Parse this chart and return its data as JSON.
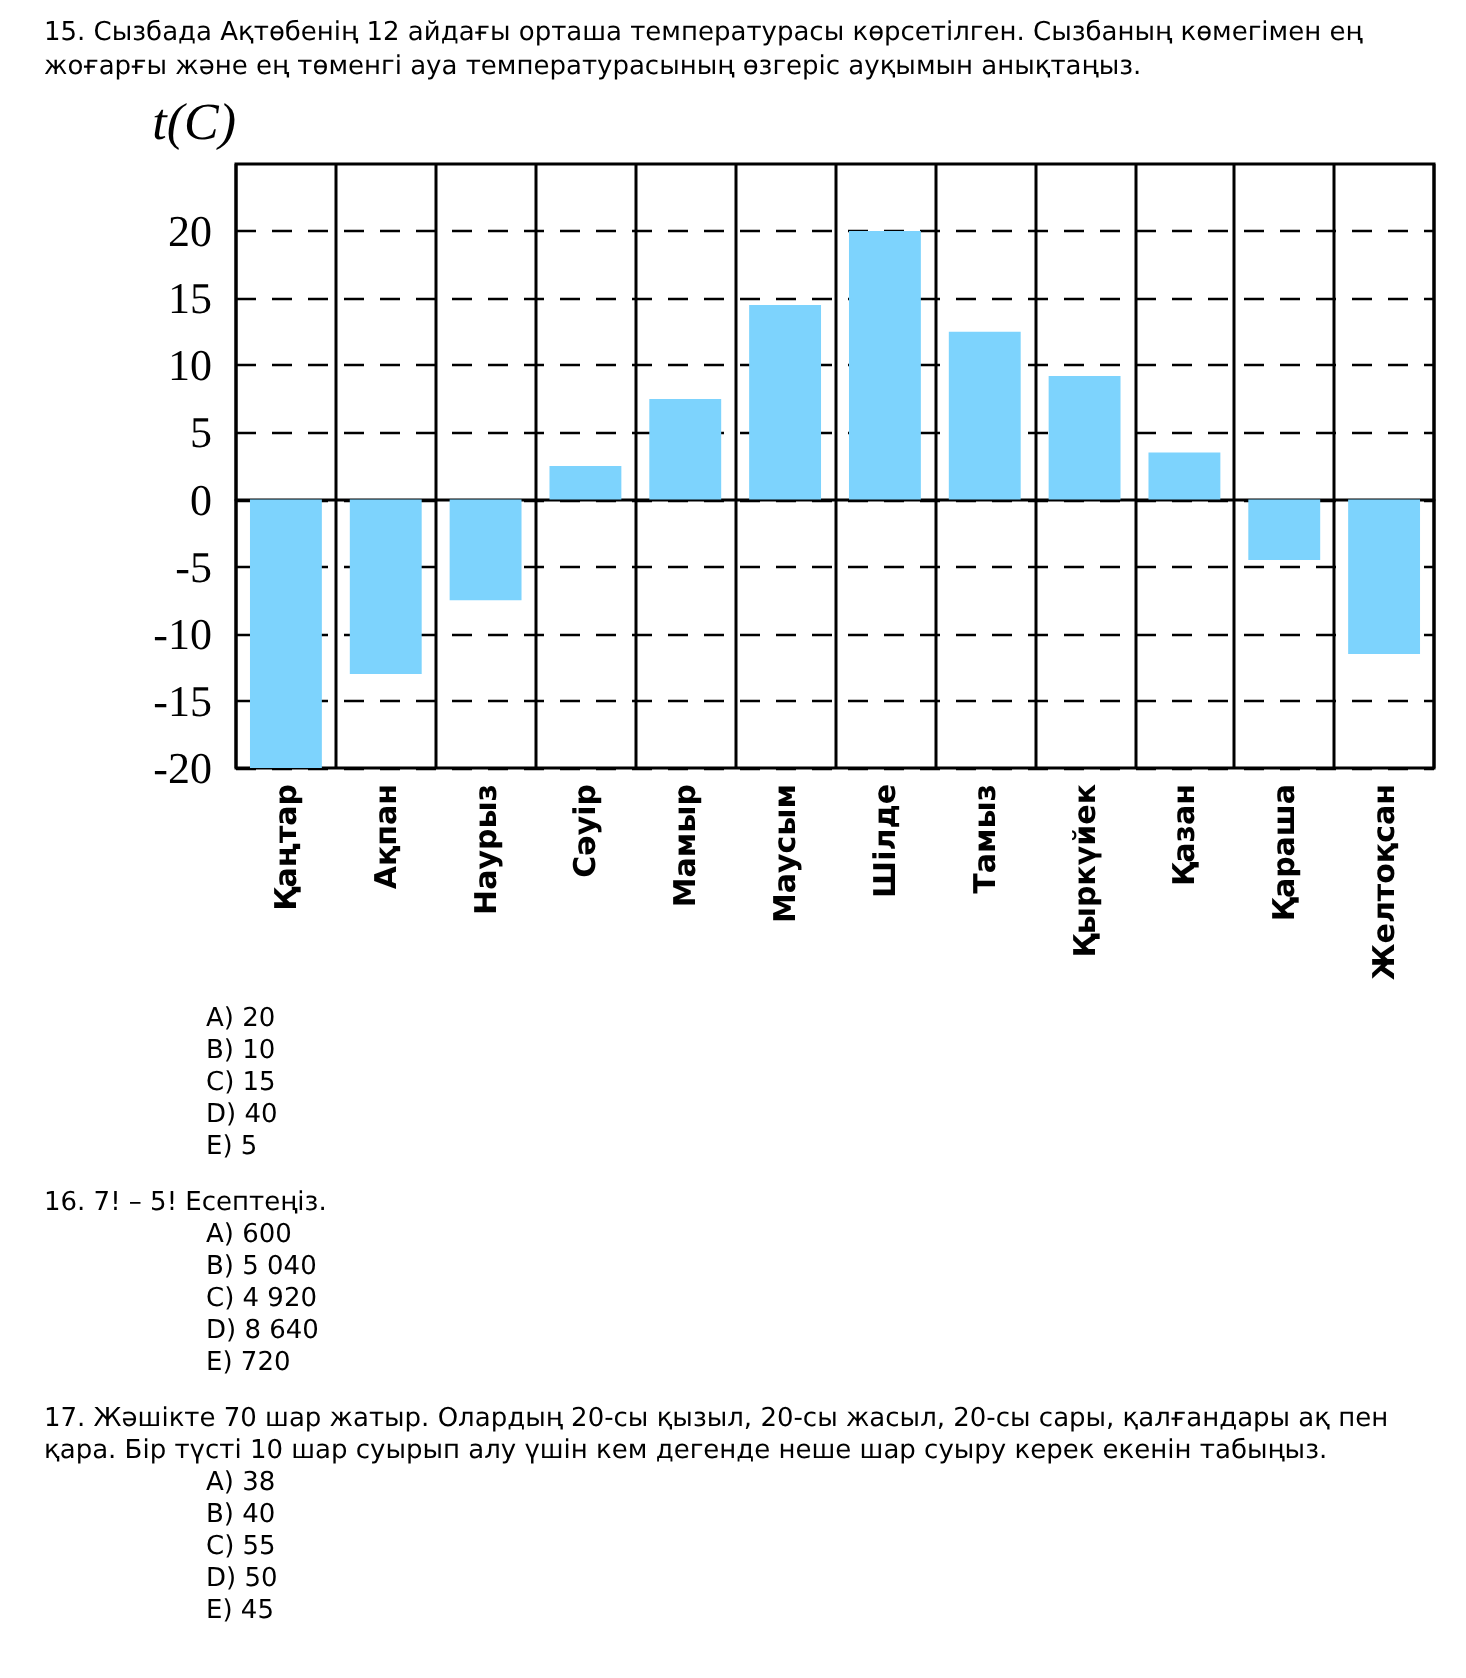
{
  "chart_data": {
    "type": "bar",
    "title": "15. Сызбада Ақтөбенің 12 айдағы орташа температурасы көрсетілген. Сызбаның көмегімен ең жоғарғы және ең төменгі ауа температурасының өзгеріс ауқымын анықтаңыз.",
    "ylabel": "t(C)",
    "categories": [
      "Қаңтар",
      "Ақпан",
      "Наурыз",
      "Сәуір",
      "Мамыр",
      "Маусым",
      "Шілде",
      "Тамыз",
      "Қыркүйек",
      "Қазан",
      "Қараша",
      "Желтоқсан"
    ],
    "values": [
      -20,
      -13,
      -7.5,
      2.5,
      7.5,
      14.5,
      20,
      12.5,
      9.2,
      3.5,
      -4.5,
      -11.5
    ],
    "color": "#7dd3fd",
    "ylim": [
      -20,
      25
    ],
    "yticks": [
      -20,
      -15,
      -10,
      -5,
      0,
      5,
      10,
      15,
      20
    ],
    "grid": true,
    "annotations": [
      "A) 20",
      "B) 10",
      "C) 15",
      "D) 40",
      "E) 5",
      "16. 7! – 5! Есептеңіз.",
      "A) 600",
      "B) 5 040",
      "C) 4 920",
      "D) 8 640",
      "E) 720",
      "17. Жәшікте 70 шар жатыр. Олардың 20-сы қызыл, 20-сы жасыл, 20-сы сары, қалғандары ақ пен қара. Бір түсті 10 шар суырып алу үшін кем дегенде неше шар суыру керек екенін табыңыз.",
      "A) 38",
      "B) 40",
      "C) 55",
      "D) 50",
      "E) 45"
    ]
  }
}
